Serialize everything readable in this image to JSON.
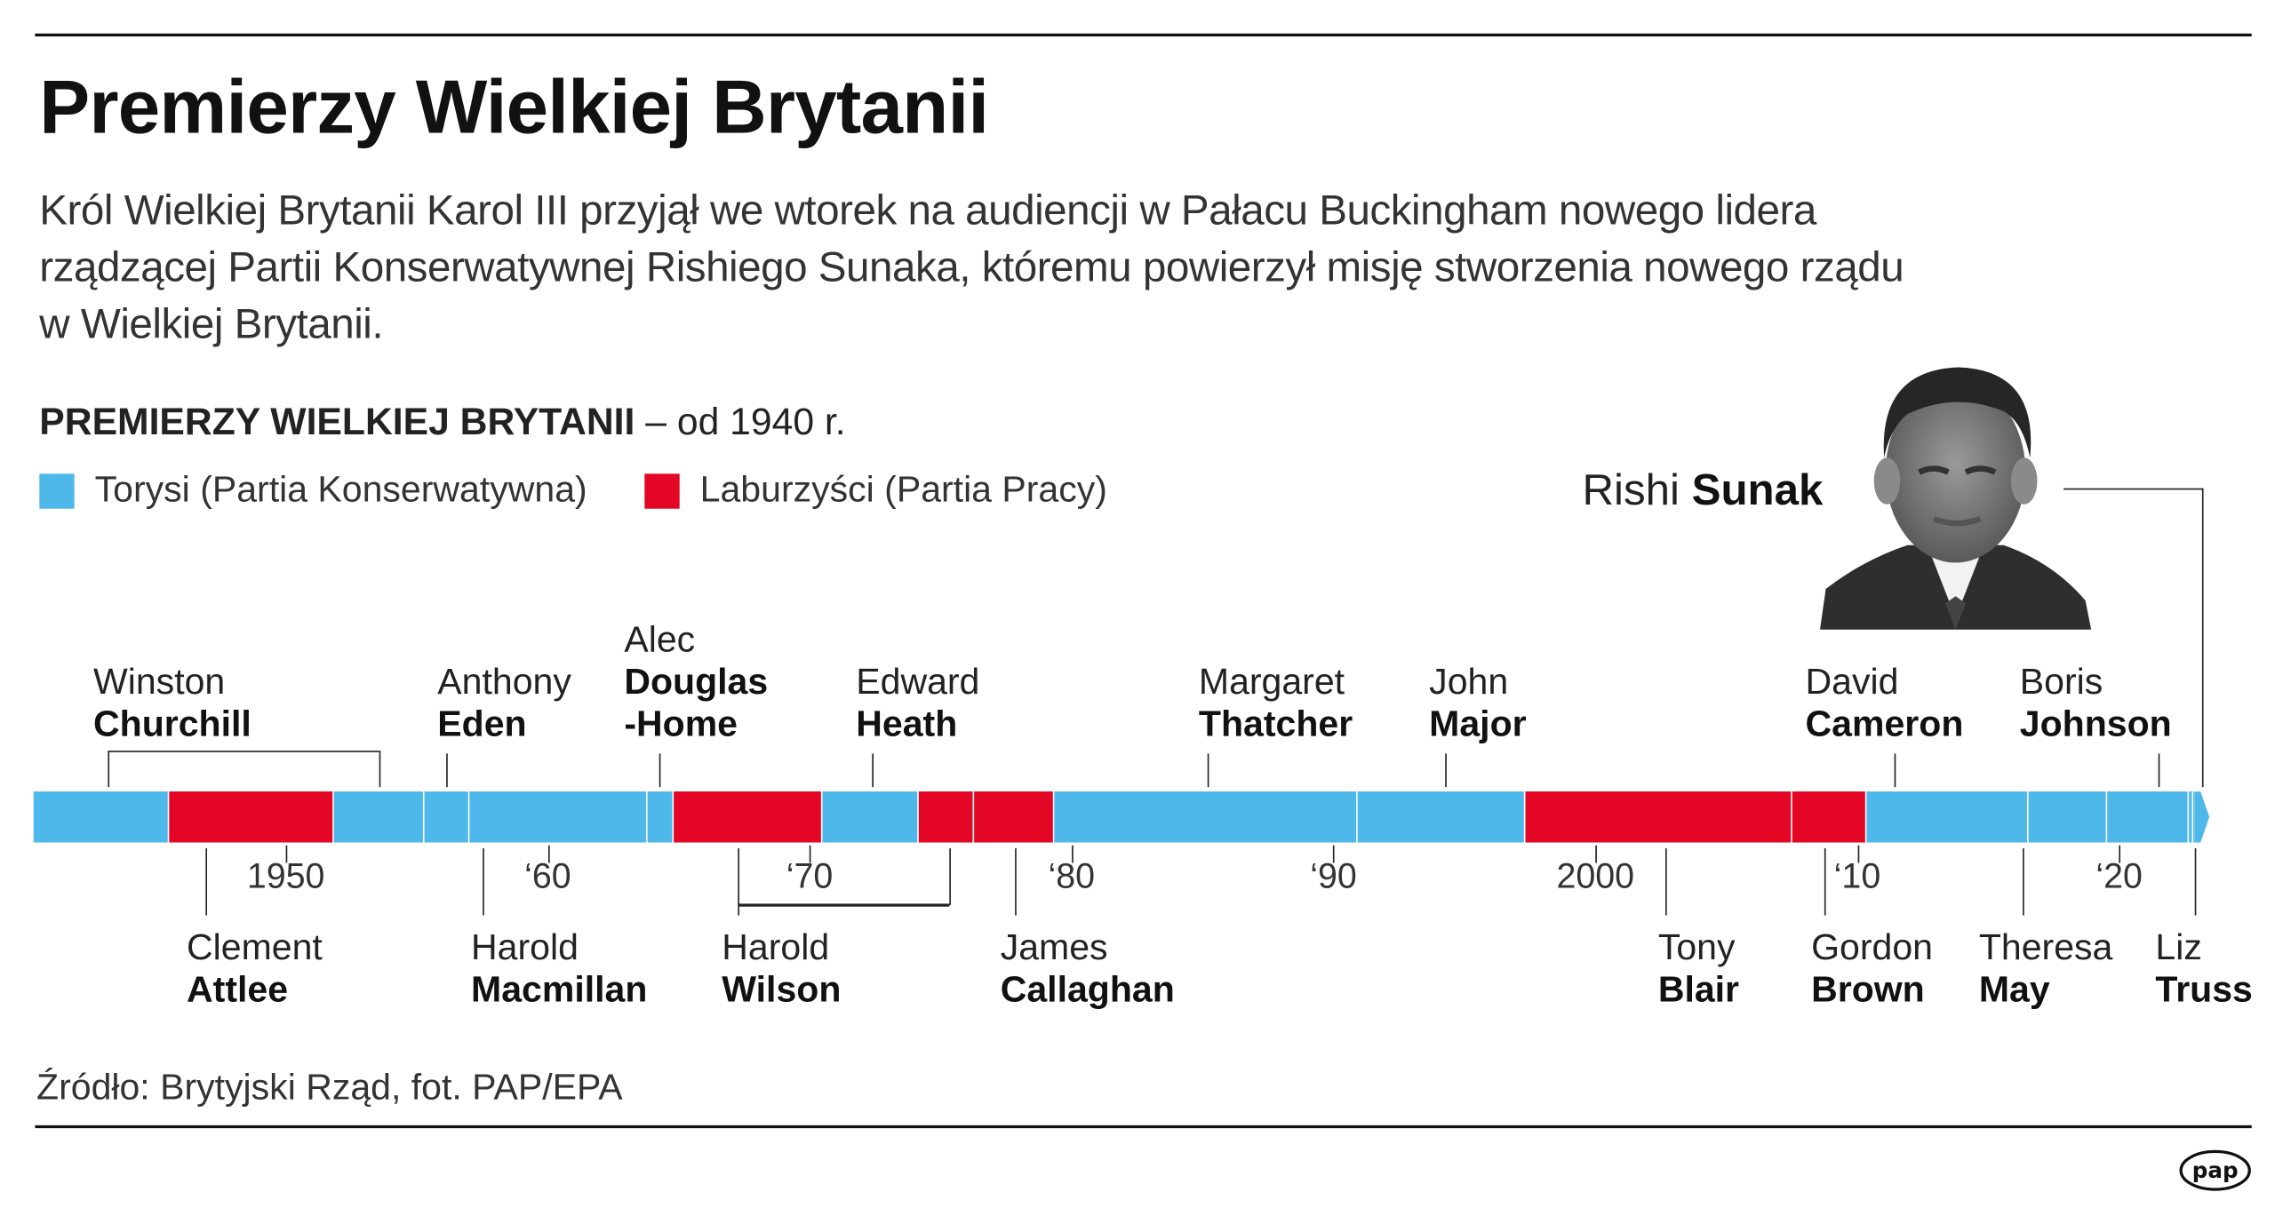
{
  "header": {
    "title": "Premierzy Wielkiej Brytanii",
    "lead": "Król Wielkiej Brytanii Karol III przyjął we wtorek na audiencji w Pałacu Buckingham nowego lidera rządzącej Partii Konserwatywnej Rishiego Sunaka, któremu powierzył misję stworzenia nowego rządu w Wielkiej Brytanii."
  },
  "section": {
    "title_bold": "PREMIERZY WIELKIEJ BRYTANII",
    "title_rest": " – od 1940 r."
  },
  "legend": [
    {
      "label": "Torysi (Partia Konserwatywna)",
      "color": "#4fb8ea"
    },
    {
      "label": "Laburzyści (Partia Pracy)",
      "color": "#e30725"
    }
  ],
  "featured": {
    "first": "Rishi",
    "last": "Sunak",
    "photo": "portrait photo of Rishi Sunak"
  },
  "chart_data": {
    "type": "timeline",
    "x_range": [
      1940,
      2023
    ],
    "tick_labels": [
      {
        "year": 1950,
        "label": "1950"
      },
      {
        "year": 1960,
        "label": "‘60"
      },
      {
        "year": 1970,
        "label": "‘70"
      },
      {
        "year": 1980,
        "label": "‘80"
      },
      {
        "year": 1990,
        "label": "‘90"
      },
      {
        "year": 2000,
        "label": "2000"
      },
      {
        "year": 2010,
        "label": "‘10"
      },
      {
        "year": 2020,
        "label": "‘20"
      }
    ],
    "terms": [
      {
        "pm": "Winston Churchill",
        "party": "tory",
        "start": 1940.36,
        "end": 1945.57
      },
      {
        "pm": "Clement Attlee",
        "party": "labour",
        "start": 1945.57,
        "end": 1951.82
      },
      {
        "pm": "Winston Churchill",
        "party": "tory",
        "start": 1951.82,
        "end": 1955.27
      },
      {
        "pm": "Anthony Eden",
        "party": "tory",
        "start": 1955.27,
        "end": 1957.03
      },
      {
        "pm": "Harold Macmillan",
        "party": "tory",
        "start": 1957.03,
        "end": 1963.8
      },
      {
        "pm": "Alec Douglas-Home",
        "party": "tory",
        "start": 1963.8,
        "end": 1964.79
      },
      {
        "pm": "Harold Wilson",
        "party": "labour",
        "start": 1964.79,
        "end": 1970.47
      },
      {
        "pm": "Edward Heath",
        "party": "tory",
        "start": 1970.47,
        "end": 1974.17
      },
      {
        "pm": "Harold Wilson",
        "party": "labour",
        "start": 1974.17,
        "end": 1976.26
      },
      {
        "pm": "James Callaghan",
        "party": "labour",
        "start": 1976.26,
        "end": 1979.34
      },
      {
        "pm": "Margaret Thatcher",
        "party": "tory",
        "start": 1979.34,
        "end": 1990.9
      },
      {
        "pm": "John Major",
        "party": "tory",
        "start": 1990.9,
        "end": 1997.34
      },
      {
        "pm": "Tony Blair",
        "party": "labour",
        "start": 1997.34,
        "end": 2007.49
      },
      {
        "pm": "Gordon Brown",
        "party": "labour",
        "start": 2007.49,
        "end": 2010.35
      },
      {
        "pm": "David Cameron",
        "party": "tory",
        "start": 2010.35,
        "end": 2016.54
      },
      {
        "pm": "Theresa May",
        "party": "tory",
        "start": 2016.54,
        "end": 2019.56
      },
      {
        "pm": "Boris Johnson",
        "party": "tory",
        "start": 2019.56,
        "end": 2022.68
      },
      {
        "pm": "Liz Truss",
        "party": "tory",
        "start": 2022.68,
        "end": 2022.82
      },
      {
        "pm": "Rishi Sunak",
        "party": "tory",
        "start": 2022.82,
        "end": 2023.2
      }
    ],
    "labels_above": [
      {
        "lines": [
          "Winston",
          "Churchill"
        ]
      },
      {
        "lines": [
          "Anthony",
          "Eden"
        ]
      },
      {
        "lines": [
          "Alec",
          "Douglas",
          "-Home"
        ]
      },
      {
        "lines": [
          "Edward",
          "Heath"
        ]
      },
      {
        "lines": [
          "Margaret",
          "Thatcher"
        ]
      },
      {
        "lines": [
          "John",
          "Major"
        ]
      },
      {
        "lines": [
          "David",
          "Cameron"
        ]
      },
      {
        "lines": [
          "Boris",
          "Johnson"
        ]
      }
    ],
    "labels_below": [
      {
        "lines": [
          "Clement",
          "Attlee"
        ]
      },
      {
        "lines": [
          "Harold",
          "Macmillan"
        ]
      },
      {
        "lines": [
          "Harold",
          "Wilson"
        ]
      },
      {
        "lines": [
          "James",
          "Callaghan"
        ]
      },
      {
        "lines": [
          "Tony",
          "Blair"
        ]
      },
      {
        "lines": [
          "Gordon",
          "Brown"
        ]
      },
      {
        "lines": [
          "Theresa",
          "May"
        ]
      },
      {
        "lines": [
          "Liz",
          "Truss"
        ]
      }
    ]
  },
  "footer": {
    "source": "Źródło: Brytyjski Rząd, fot. PAP/EPA",
    "logo": "pap"
  }
}
